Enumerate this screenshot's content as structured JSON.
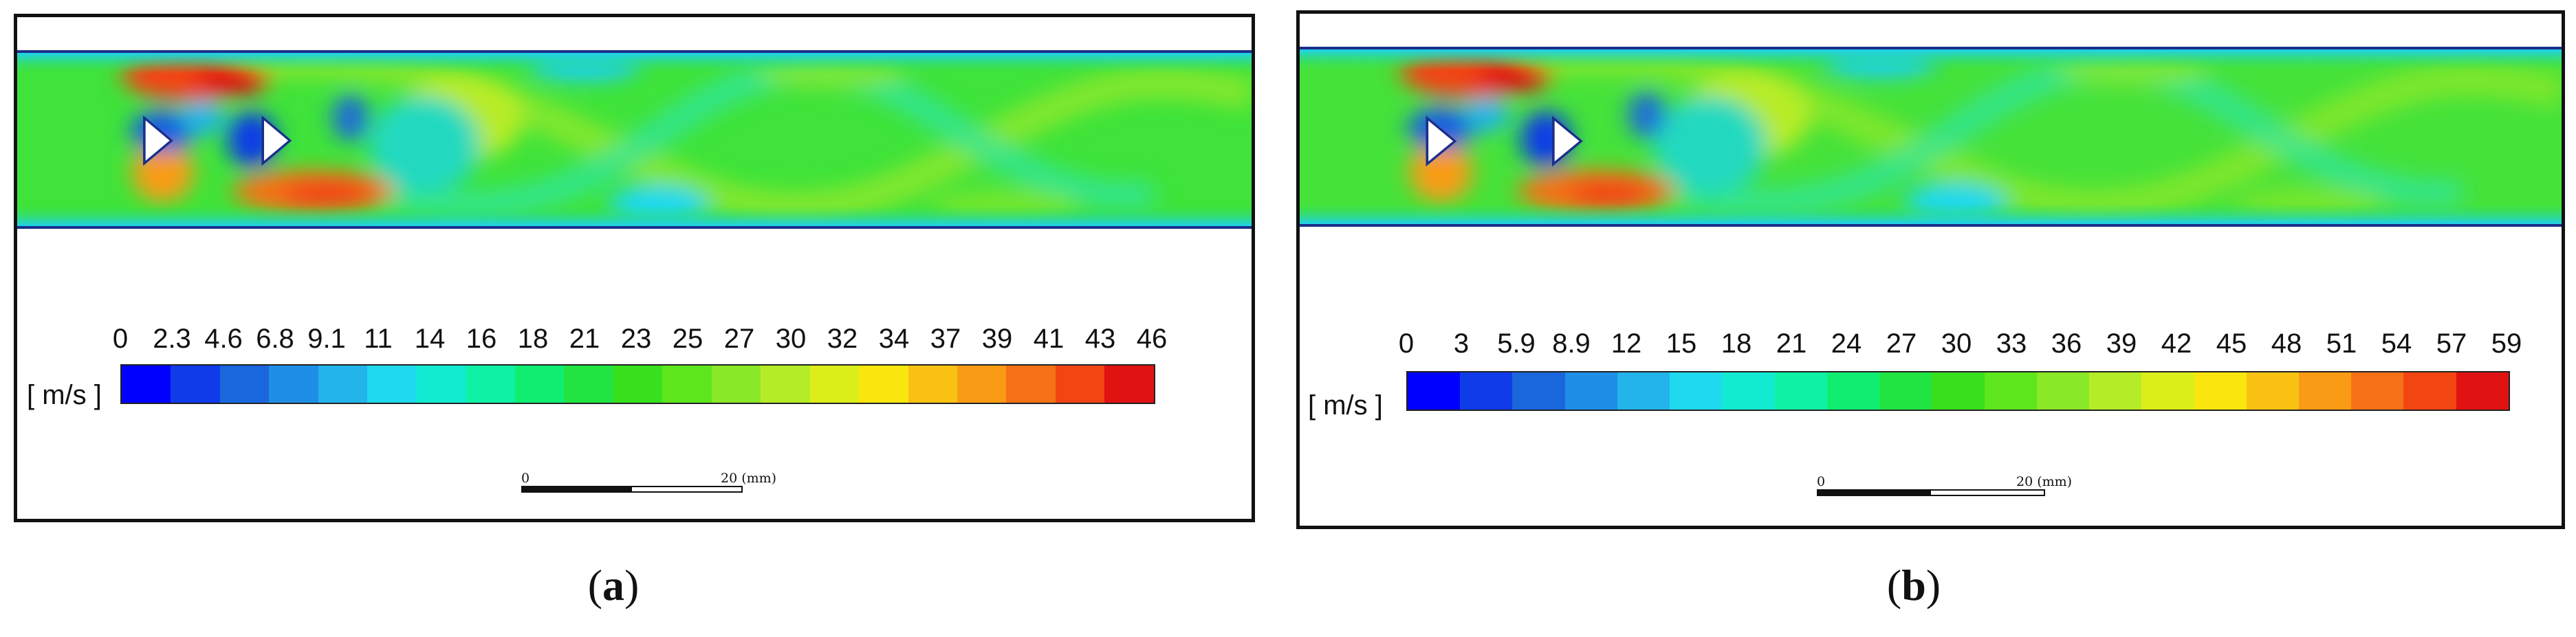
{
  "panels": [
    {
      "id": "a",
      "ticks": [
        "0",
        "2.3",
        "4.6",
        "6.8",
        "9.1",
        "11",
        "14",
        "16",
        "18",
        "21",
        "23",
        "25",
        "27",
        "30",
        "32",
        "34",
        "37",
        "39",
        "41",
        "43",
        "46"
      ],
      "unit_label": "[ m/s ]",
      "scale_bar": {
        "start_label": "0",
        "end_label": "20 (mm)"
      },
      "caption_letter": "a"
    },
    {
      "id": "b",
      "ticks": [
        "0",
        "3",
        "5.9",
        "8.9",
        "12",
        "15",
        "18",
        "21",
        "24",
        "27",
        "30",
        "33",
        "36",
        "39",
        "42",
        "45",
        "48",
        "51",
        "54",
        "57",
        "59"
      ],
      "unit_label": "[ m/s ]",
      "scale_bar": {
        "start_label": "0",
        "end_label": "20 (mm)"
      },
      "caption_letter": "b"
    }
  ],
  "colormap": {
    "name": "rainbow",
    "stops": [
      "#0000ff",
      "#0f3be8",
      "#1a66dd",
      "#1f8ee6",
      "#22b4ea",
      "#1fd9ee",
      "#12ebd1",
      "#0ef2a6",
      "#10ee72",
      "#22e544",
      "#38e01e",
      "#5de61c",
      "#8ae829",
      "#b5ec28",
      "#dcee1a",
      "#f8e60e",
      "#f9c212",
      "#f99b14",
      "#f77116",
      "#f24512",
      "#e01212"
    ]
  }
}
